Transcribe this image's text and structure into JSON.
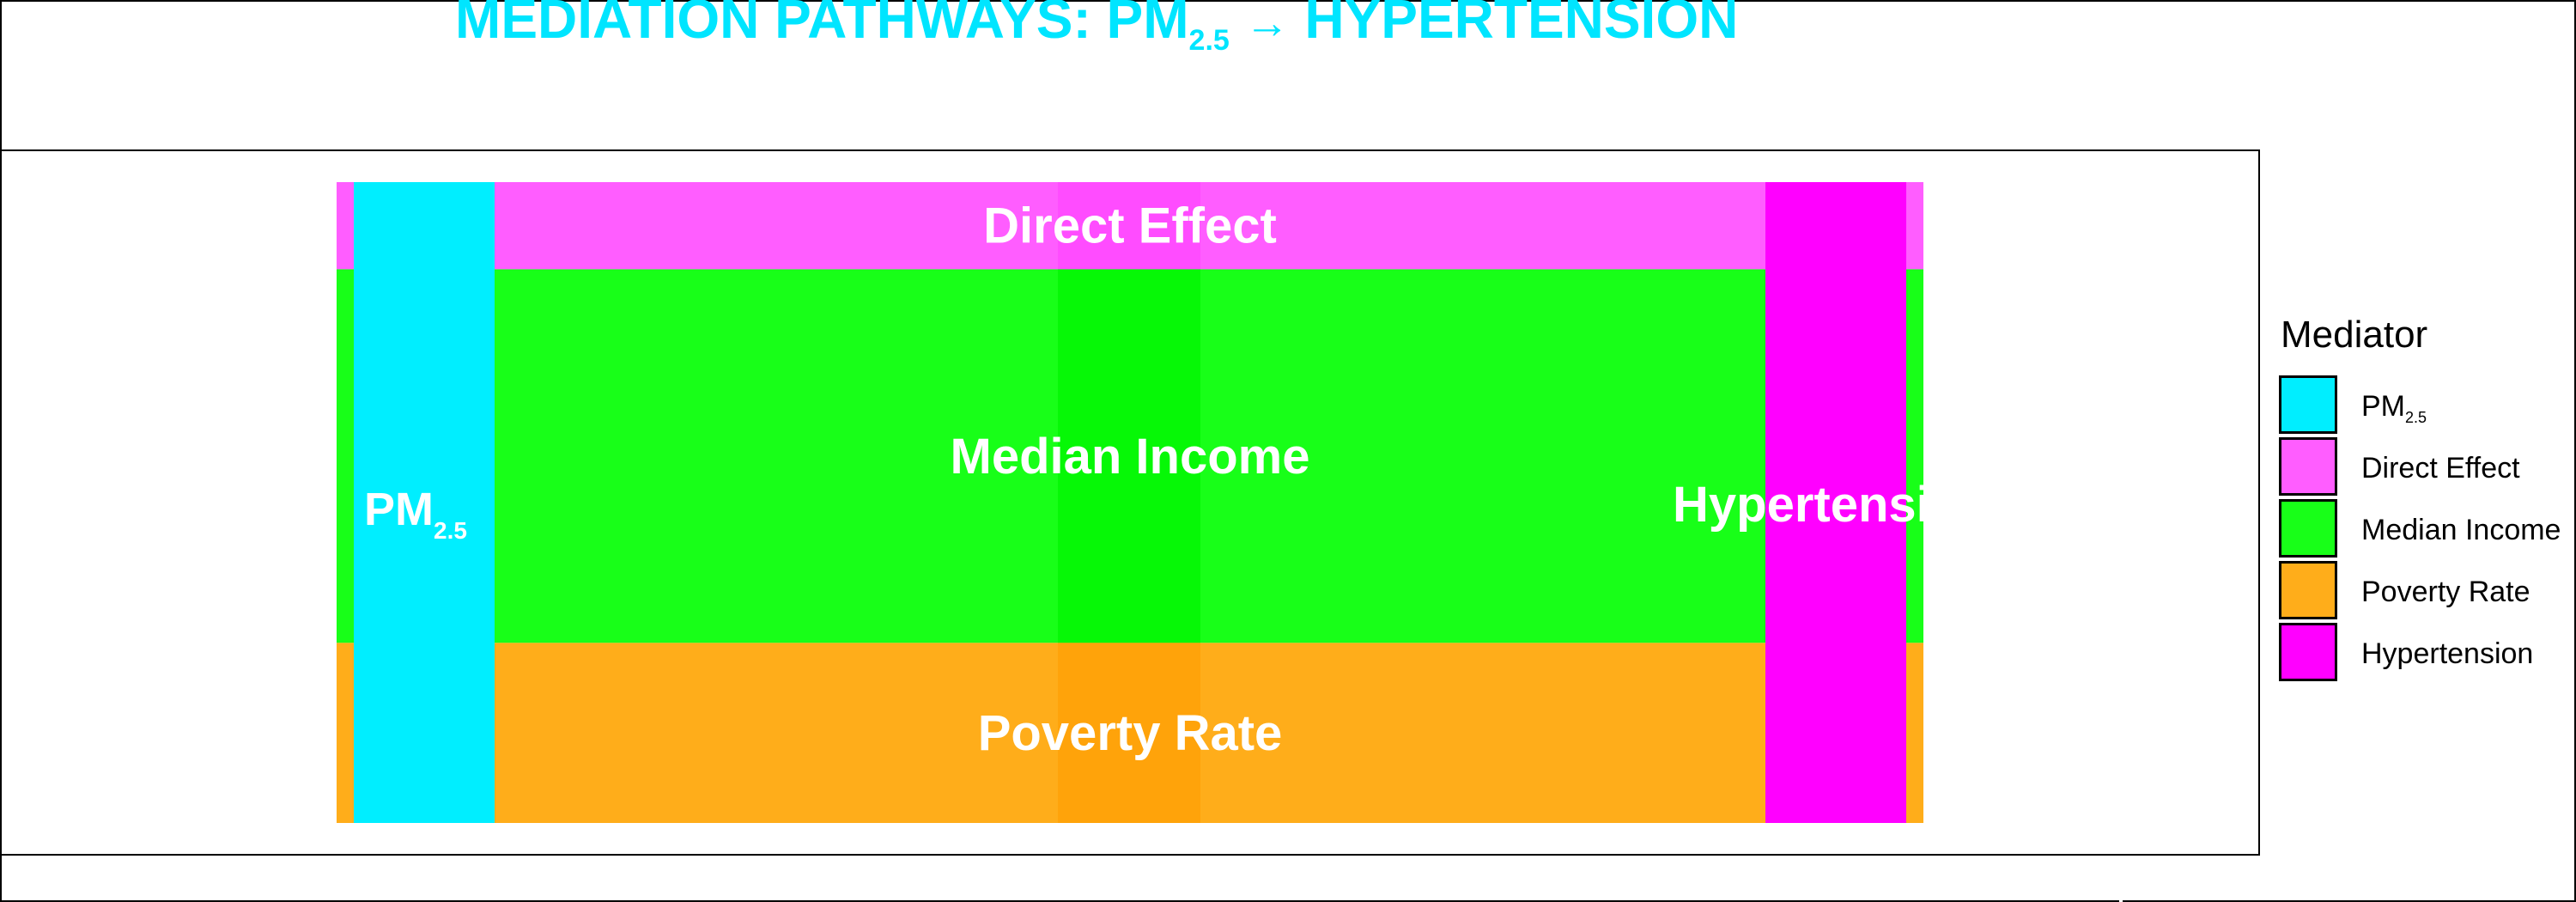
{
  "chart_data": {
    "type": "sankey",
    "title_parts": {
      "prefix": "MEDIATION PATHWAYS: PM",
      "sub": "2.5",
      "arrow": "→",
      "suffix": "HYPERTENSION"
    },
    "nodes": [
      {
        "id": "pm25",
        "label": "PM",
        "label_sub": "2.5",
        "color": "#00eeff"
      },
      {
        "id": "hypertension",
        "label": "Hypertension",
        "color": "#ff00ff"
      }
    ],
    "flows": [
      {
        "name": "Direct Effect",
        "from": "pm25",
        "to": "hypertension",
        "value": 0.136,
        "color": "#ff5dff",
        "mid_color": "#ff4cff"
      },
      {
        "name": "Median Income",
        "from": "pm25",
        "to": "hypertension",
        "value": 0.583,
        "color": "#18ff18",
        "mid_color": "#06f806"
      },
      {
        "name": "Poverty Rate",
        "from": "pm25",
        "to": "hypertension",
        "value": 0.281,
        "color": "#ffad1a",
        "mid_color": "#ffa30a"
      }
    ],
    "legend": {
      "title": "Mediator",
      "position": "right",
      "items": [
        {
          "label": "PM",
          "label_sub": "2.5",
          "color": "#00eeff"
        },
        {
          "label": "Direct Effect",
          "color": "#ff5dff"
        },
        {
          "label": "Median Income",
          "color": "#18ff18"
        },
        {
          "label": "Poverty Rate",
          "color": "#ffad1a"
        },
        {
          "label": "Hypertension",
          "color": "#ff00ff"
        }
      ]
    },
    "title_color": "#00e5ff"
  }
}
